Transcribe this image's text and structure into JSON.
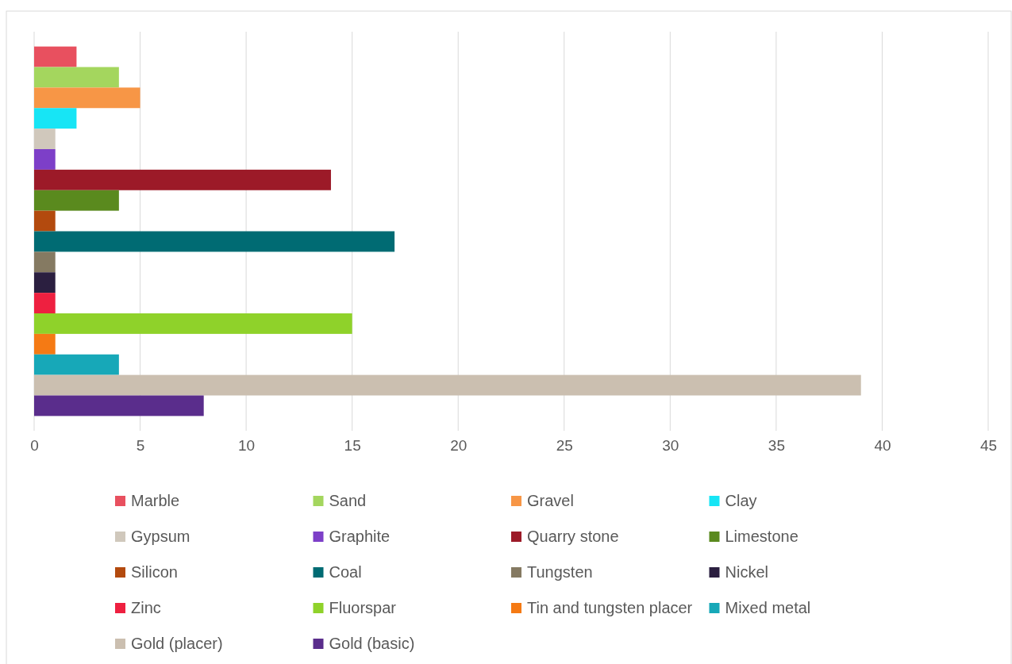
{
  "chart_data": {
    "type": "bar",
    "orientation": "horizontal",
    "categories": [
      null
    ],
    "series": [
      {
        "name": "Marble",
        "color": "#e8505f",
        "values": [
          2
        ]
      },
      {
        "name": "Sand",
        "color": "#a4d65e",
        "values": [
          4
        ]
      },
      {
        "name": "Gravel",
        "color": "#f79646",
        "values": [
          5
        ]
      },
      {
        "name": "Clay",
        "color": "#17e5f5",
        "values": [
          2
        ]
      },
      {
        "name": "Gypsum",
        "color": "#d0c8bc",
        "values": [
          1
        ]
      },
      {
        "name": "Graphite",
        "color": "#7d3fc8",
        "values": [
          1
        ]
      },
      {
        "name": "Quarry stone",
        "color": "#9c1a28",
        "values": [
          14
        ]
      },
      {
        "name": "Limestone",
        "color": "#5a8a1e",
        "values": [
          4
        ]
      },
      {
        "name": "Silicon",
        "color": "#b34a0e",
        "values": [
          1
        ]
      },
      {
        "name": "Coal",
        "color": "#006b73",
        "values": [
          17
        ]
      },
      {
        "name": "Tungsten",
        "color": "#857a62",
        "values": [
          1
        ]
      },
      {
        "name": "Nickel",
        "color": "#2b1f40",
        "values": [
          1
        ]
      },
      {
        "name": "Zinc",
        "color": "#ee2040",
        "values": [
          1
        ]
      },
      {
        "name": "Fluorspar",
        "color": "#8fd22a",
        "values": [
          15
        ]
      },
      {
        "name": "Tin and tungsten placer",
        "color": "#f57a14",
        "values": [
          1
        ]
      },
      {
        "name": "Mixed metal",
        "color": "#17a8b8",
        "values": [
          4
        ]
      },
      {
        "name": "Gold (placer)",
        "color": "#cbbfb0",
        "values": [
          39
        ]
      },
      {
        "name": "Gold (basic)",
        "color": "#5a2d8c",
        "values": [
          8
        ]
      }
    ],
    "xlim": [
      0,
      45
    ],
    "xticks": [
      0,
      5,
      10,
      15,
      20,
      25,
      30,
      35,
      40,
      45
    ],
    "grid": "x",
    "legend": "bottom"
  }
}
